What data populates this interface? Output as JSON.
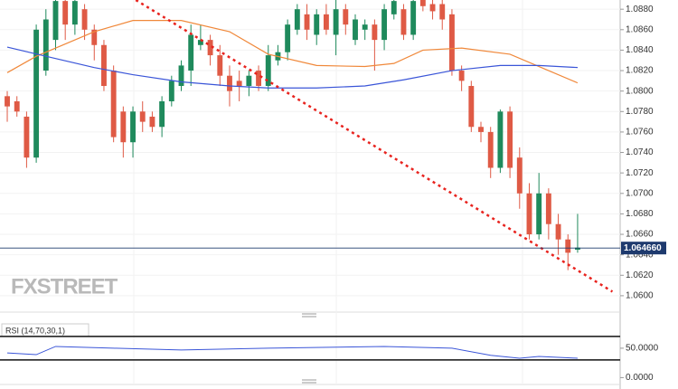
{
  "chart_data": [
    {
      "type": "candlestick",
      "open": [
        1.0795,
        1.079,
        1.0775,
        1.0735,
        1.082,
        1.085,
        1.0888,
        1.0865,
        1.088,
        1.086,
        1.0845,
        1.082,
        1.078,
        1.075,
        1.078,
        1.0775,
        1.0765,
        1.079,
        1.0805,
        1.082,
        1.0845,
        1.085,
        1.0835,
        1.0815,
        1.081,
        1.0805,
        1.082,
        1.0805,
        1.083,
        1.0838,
        1.086,
        1.0875,
        1.0855,
        1.0875,
        1.0855,
        1.088,
        1.085,
        1.086,
        1.0865,
        1.085,
        1.0875,
        1.088,
        1.0855,
        1.0889,
        1.0885,
        1.0885,
        1.0875,
        1.082,
        1.0805,
        1.0765,
        1.076,
        1.0725,
        1.078,
        1.0735,
        1.07,
        1.066,
        1.07,
        1.067,
        1.0655,
        1.0645
      ],
      "high": [
        1.08,
        1.0795,
        1.078,
        1.0865,
        1.088,
        1.0889,
        1.0889,
        1.0889,
        1.0885,
        1.0865,
        1.085,
        1.0825,
        1.0785,
        1.0785,
        1.079,
        1.078,
        1.0795,
        1.0815,
        1.083,
        1.0865,
        1.0865,
        1.0855,
        1.0845,
        1.0825,
        1.082,
        1.082,
        1.0825,
        1.0845,
        1.0845,
        1.087,
        1.0885,
        1.0885,
        1.088,
        1.0885,
        1.0889,
        1.0885,
        1.0875,
        1.087,
        1.087,
        1.0885,
        1.0889,
        1.0885,
        1.0889,
        1.0889,
        1.0889,
        1.0889,
        1.088,
        1.0825,
        1.081,
        1.077,
        1.0765,
        1.0782,
        1.0785,
        1.0745,
        1.071,
        1.072,
        1.0705,
        1.068,
        1.066,
        1.068
      ],
      "low": [
        1.077,
        1.0775,
        1.0725,
        1.073,
        1.0815,
        1.084,
        1.085,
        1.0855,
        1.085,
        1.083,
        1.08,
        1.075,
        1.0735,
        1.0735,
        1.076,
        1.076,
        1.0755,
        1.0785,
        1.08,
        1.0805,
        1.084,
        1.0825,
        1.0805,
        1.0785,
        1.079,
        1.0795,
        1.08,
        1.08,
        1.0825,
        1.083,
        1.0855,
        1.085,
        1.0845,
        1.0855,
        1.0835,
        1.0855,
        1.0845,
        1.085,
        1.082,
        1.084,
        1.087,
        1.085,
        1.085,
        1.0878,
        1.087,
        1.086,
        1.0815,
        1.08,
        1.076,
        1.075,
        1.0715,
        1.072,
        1.0715,
        1.0685,
        1.0655,
        1.0655,
        1.0655,
        1.064,
        1.0625,
        1.0642
      ],
      "close": [
        1.0785,
        1.078,
        1.0735,
        1.086,
        1.087,
        1.0888,
        1.0865,
        1.0888,
        1.086,
        1.0845,
        1.0805,
        1.0755,
        1.075,
        1.078,
        1.077,
        1.0765,
        1.079,
        1.081,
        1.0825,
        1.0855,
        1.085,
        1.0835,
        1.0815,
        1.08,
        1.0805,
        1.0815,
        1.0805,
        1.0835,
        1.0838,
        1.0865,
        1.088,
        1.086,
        1.0875,
        1.086,
        1.088,
        1.0865,
        1.087,
        1.0865,
        1.085,
        1.088,
        1.0888,
        1.0855,
        1.0888,
        1.0883,
        1.0878,
        1.087,
        1.082,
        1.081,
        1.0765,
        1.076,
        1.0725,
        1.078,
        1.0725,
        1.07,
        1.066,
        1.07,
        1.067,
        1.0655,
        1.0642,
        1.0647
      ],
      "up_color": "#1f8a5c",
      "down_color": "#df5a45",
      "xlim": [
        -0.75,
        63.4
      ],
      "ylim": [
        1.0584,
        1.0889
      ],
      "yticks": [
        {
          "value": 1.088,
          "label": "1.0880"
        },
        {
          "value": 1.086,
          "label": "1.0860"
        },
        {
          "value": 1.084,
          "label": "1.0840"
        },
        {
          "value": 1.082,
          "label": "1.0820"
        },
        {
          "value": 1.08,
          "label": "1.0800"
        },
        {
          "value": 1.078,
          "label": "1.0780"
        },
        {
          "value": 1.076,
          "label": "1.0760"
        },
        {
          "value": 1.074,
          "label": "1.0740"
        },
        {
          "value": 1.072,
          "label": "1.0720"
        },
        {
          "value": 1.07,
          "label": "1.0700"
        },
        {
          "value": 1.068,
          "label": "1.0680"
        },
        {
          "value": 1.066,
          "label": "1.0660"
        },
        {
          "value": 1.064,
          "label": "1.0640"
        },
        {
          "value": 1.062,
          "label": "1.0620"
        },
        {
          "value": 1.06,
          "label": "1.0600"
        }
      ],
      "grid": true,
      "overlays": [
        {
          "color": "#f0883a",
          "x": [
            0,
            3,
            9,
            13,
            18,
            23,
            27,
            32,
            37,
            40,
            43,
            47,
            52,
            56,
            59
          ],
          "values": [
            1.0818,
            1.0834,
            1.0858,
            1.0869,
            1.0869,
            1.0858,
            1.0836,
            1.0825,
            1.0824,
            1.0827,
            1.084,
            1.0842,
            1.0836,
            1.082,
            1.0808
          ]
        },
        {
          "color": "#3a55d8",
          "x": [
            0,
            4,
            9,
            13,
            18,
            23,
            27,
            32,
            37,
            41,
            46,
            51,
            55,
            59
          ],
          "values": [
            1.0843,
            1.0834,
            1.0823,
            1.0816,
            1.0809,
            1.0805,
            1.0803,
            1.0803,
            1.0805,
            1.0811,
            1.082,
            1.0825,
            1.0825,
            1.0823
          ]
        }
      ],
      "trendline": {
        "color": "#e8231e",
        "x": [
          13.3,
          62.6
        ],
        "values": [
          1.0889,
          1.0604
        ]
      },
      "last_price": {
        "value": 1.06466,
        "label": "1.064660"
      },
      "watermark": "FXSTREET"
    },
    {
      "type": "line",
      "title": "RSI (14,70,30,1)",
      "color": "#3a55d8",
      "x": [
        0,
        3,
        5,
        11,
        18,
        27,
        39,
        46,
        50,
        53,
        55,
        59
      ],
      "values": [
        42,
        39,
        53,
        50,
        47,
        50,
        53,
        50,
        38,
        33,
        36,
        33
      ],
      "xlim": [
        -0.75,
        63.4
      ],
      "ylim": [
        -4,
        96
      ],
      "yticks": [
        {
          "value": 50,
          "label": "50.0000"
        },
        {
          "value": 0,
          "label": "0.0000"
        }
      ],
      "levels": [
        70,
        30
      ]
    }
  ]
}
